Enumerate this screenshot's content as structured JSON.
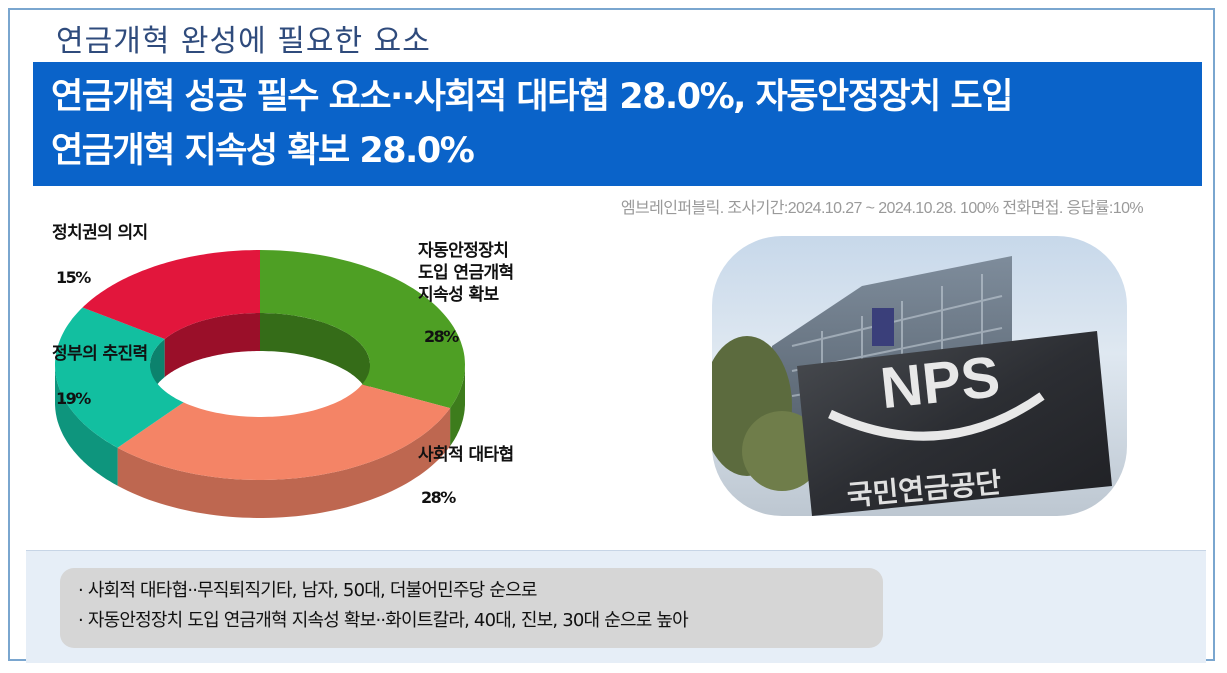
{
  "header": {
    "subtitle": "연금개혁 완성에 필요한 요소",
    "headline_line1": "연금개혁 성공 필수 요소··사회적 대타협 28.0%, 자동안정장치 도입",
    "headline_line2": "연금개혁 지속성 확보 28.0%"
  },
  "source_note": "엠브레인퍼블릭. 조사기간:2024.10.27 ~ 2024.10.28. 100% 전화면접. 응답률:10%",
  "chart_data": {
    "type": "pie",
    "style": "3d-donut",
    "slices": [
      {
        "label_lines": [
          "자동안정장치",
          "도입 연금개혁",
          "지속성 확보"
        ],
        "value": 28,
        "pct_text": "28%",
        "color": "#4e9f24"
      },
      {
        "label_lines": [
          "사회적 대타협"
        ],
        "value": 28,
        "pct_text": "28%",
        "color": "#f48466"
      },
      {
        "label_lines": [
          "정부의 추진력"
        ],
        "value": 19,
        "pct_text": "19%",
        "color": "#12bfa0"
      },
      {
        "label_lines": [
          "정치권의 의지"
        ],
        "value": 15,
        "pct_text": "15%",
        "color": "#e2163c"
      }
    ],
    "colors": {
      "green": "#4e9f24",
      "salmon": "#f48466",
      "teal": "#12bfa0",
      "red": "#e2163c"
    }
  },
  "photo": {
    "sign_logo_text": "NPS",
    "sign_caption": "국민연금공단"
  },
  "notes": [
    "· 사회적 대타협··무직퇴직기타, 남자, 50대, 더불어민주당 순으로",
    "· 자동안정장치 도입 연금개혁 지속성 확보··화이트칼라, 40대, 진보, 30대 순으로 높아"
  ],
  "theme": {
    "banner_bg": "#0a63c9",
    "frame_border": "#7aa6cf",
    "notes_bg": "#d6d6d6",
    "panel_bg": "#e6eef7"
  }
}
